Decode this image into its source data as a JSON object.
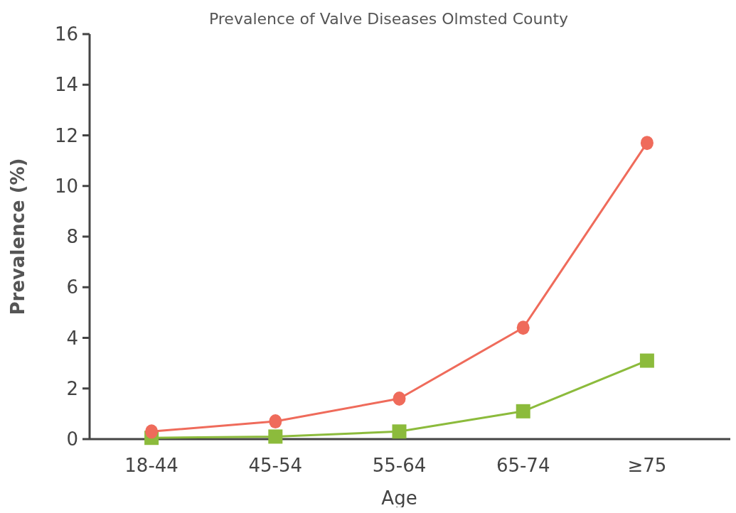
{
  "chart_data": {
    "type": "line",
    "title": "Prevalence of Valve Diseases Olmsted County",
    "xlabel": "Age",
    "ylabel": "Prevalence (%)",
    "categories": [
      "18-44",
      "45-54",
      "55-64",
      "65-74",
      "≥75"
    ],
    "series": [
      {
        "color": "#ef6b5b",
        "marker": "circle",
        "values": [
          0.3,
          0.7,
          1.6,
          4.4,
          11.7
        ]
      },
      {
        "color": "#8cbb3c",
        "marker": "square",
        "values": [
          0.05,
          0.1,
          0.3,
          1.1,
          3.1
        ]
      }
    ],
    "ylim": [
      0,
      16
    ],
    "yticks": [
      0,
      2,
      4,
      6,
      8,
      10,
      12,
      14,
      16
    ],
    "line_style": "solid"
  }
}
